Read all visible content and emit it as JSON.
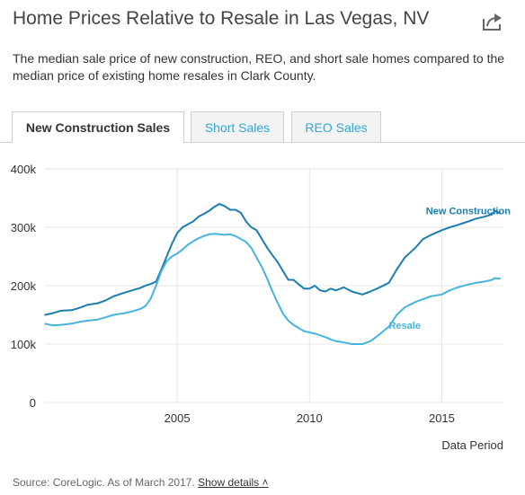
{
  "title": "Home Prices Relative to Resale in Las Vegas, NV",
  "description": "The median sale price of new construction, REO, and short sale homes compared to the median price of existing home resales in Clark County.",
  "tabs": [
    {
      "label": "New Construction Sales",
      "active": true
    },
    {
      "label": "Short Sales",
      "active": false
    },
    {
      "label": "REO Sales",
      "active": false
    }
  ],
  "icons": {
    "share": "share-icon"
  },
  "colors": {
    "new_construction": "#1a7fb0",
    "resale": "#45b4e0",
    "tab_link": "#2fa7d6"
  },
  "source": {
    "text": "Source: CoreLogic. As of March 2017.",
    "details_label": "Show details"
  },
  "chart_data": {
    "type": "line",
    "xlabel": "Data Period",
    "ylabel": "",
    "xlim": [
      2000.0,
      2017.33
    ],
    "ylim": [
      0,
      400000
    ],
    "x_ticks": [
      2005,
      2010,
      2015
    ],
    "y_ticks": [
      {
        "value": 0,
        "label": "0"
      },
      {
        "value": 100000,
        "label": "100k"
      },
      {
        "value": 200000,
        "label": "200k"
      },
      {
        "value": 300000,
        "label": "300k"
      },
      {
        "value": 400000,
        "label": "400k"
      }
    ],
    "grid": true,
    "series": [
      {
        "name": "New Construction",
        "color": "#1a7fb0",
        "x": [
          2000.0,
          2000.3,
          2000.6,
          2001.0,
          2001.3,
          2001.6,
          2002.0,
          2002.3,
          2002.6,
          2003.0,
          2003.3,
          2003.6,
          2003.8,
          2004.0,
          2004.2,
          2004.4,
          2004.6,
          2004.8,
          2005.0,
          2005.2,
          2005.4,
          2005.6,
          2005.8,
          2006.0,
          2006.2,
          2006.4,
          2006.6,
          2006.8,
          2007.0,
          2007.2,
          2007.4,
          2007.6,
          2007.8,
          2008.0,
          2008.2,
          2008.4,
          2008.6,
          2008.8,
          2009.0,
          2009.2,
          2009.4,
          2009.6,
          2009.8,
          2010.0,
          2010.2,
          2010.4,
          2010.6,
          2010.8,
          2011.0,
          2011.3,
          2011.6,
          2012.0,
          2012.3,
          2012.6,
          2013.0,
          2013.3,
          2013.6,
          2014.0,
          2014.3,
          2014.6,
          2015.0,
          2015.3,
          2015.6,
          2016.0,
          2016.3,
          2016.6,
          2016.9,
          2017.0,
          2017.2
        ],
        "y": [
          150000,
          153000,
          157000,
          158000,
          162000,
          167000,
          170000,
          175000,
          182000,
          188000,
          192000,
          196000,
          200000,
          203000,
          207000,
          228000,
          250000,
          272000,
          290000,
          300000,
          305000,
          310000,
          318000,
          323000,
          328000,
          335000,
          340000,
          336000,
          330000,
          330000,
          325000,
          310000,
          300000,
          295000,
          280000,
          265000,
          252000,
          240000,
          225000,
          210000,
          210000,
          202000,
          195000,
          195000,
          200000,
          192000,
          190000,
          195000,
          192000,
          197000,
          190000,
          185000,
          190000,
          196000,
          205000,
          228000,
          248000,
          265000,
          280000,
          287000,
          295000,
          300000,
          304000,
          310000,
          315000,
          318000,
          322000,
          328000,
          324000
        ]
      },
      {
        "name": "Resale",
        "color": "#45b4e0",
        "x": [
          2000.0,
          2000.3,
          2000.6,
          2001.0,
          2001.3,
          2001.6,
          2002.0,
          2002.3,
          2002.6,
          2003.0,
          2003.3,
          2003.6,
          2003.8,
          2004.0,
          2004.2,
          2004.4,
          2004.6,
          2004.8,
          2005.0,
          2005.2,
          2005.4,
          2005.6,
          2005.8,
          2006.0,
          2006.2,
          2006.4,
          2006.6,
          2006.8,
          2007.0,
          2007.2,
          2007.4,
          2007.6,
          2007.8,
          2008.0,
          2008.2,
          2008.4,
          2008.6,
          2008.8,
          2009.0,
          2009.2,
          2009.4,
          2009.6,
          2009.8,
          2010.0,
          2010.2,
          2010.4,
          2010.6,
          2010.8,
          2011.0,
          2011.3,
          2011.6,
          2012.0,
          2012.3,
          2012.6,
          2013.0,
          2013.3,
          2013.6,
          2014.0,
          2014.3,
          2014.6,
          2015.0,
          2015.3,
          2015.6,
          2016.0,
          2016.3,
          2016.6,
          2016.9,
          2017.0,
          2017.2
        ],
        "y": [
          135000,
          132000,
          133000,
          135000,
          138000,
          140000,
          142000,
          146000,
          150000,
          153000,
          156000,
          160000,
          165000,
          178000,
          200000,
          225000,
          242000,
          250000,
          255000,
          262000,
          270000,
          276000,
          281000,
          285000,
          288000,
          289000,
          288000,
          287000,
          288000,
          285000,
          280000,
          275000,
          265000,
          248000,
          232000,
          212000,
          190000,
          170000,
          152000,
          140000,
          133000,
          127000,
          122000,
          120000,
          118000,
          115000,
          112000,
          108000,
          105000,
          103000,
          100000,
          100000,
          105000,
          115000,
          130000,
          150000,
          163000,
          172000,
          177000,
          182000,
          185000,
          192000,
          197000,
          202000,
          205000,
          207000,
          210000,
          213000,
          212000
        ]
      }
    ],
    "annotations": [
      {
        "text": "New Construction",
        "series": "New Construction"
      },
      {
        "text": "Resale",
        "series": "Resale"
      }
    ]
  }
}
